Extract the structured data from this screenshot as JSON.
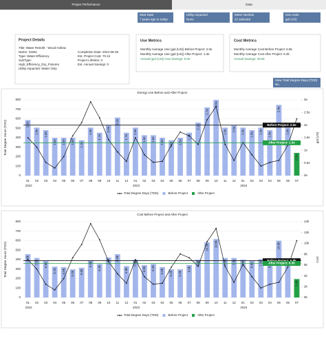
{
  "tabs": [
    "Project Performance",
    "Data"
  ],
  "filters": [
    {
      "label": "Start Date",
      "value": "7 years ago to today"
    },
    {
      "label": "Utility Impacted",
      "value": "None"
    },
    {
      "label": "Meter Number",
      "value": "22 selected"
    },
    {
      "label": "Use Units",
      "value": "gal (US)"
    }
  ],
  "project_details": {
    "title": "Project Details",
    "heading": "Title: Water Retrofit - Wood Hollow",
    "left": [
      "Name: 31561",
      "Type: Water Efficiency",
      "SubType:",
      "High_Efficiency_Dry_Fixtures",
      "Utility Impacted: Water Only"
    ],
    "right": [
      "Completion Date: 2024-06-28",
      "Est. Project Cost: 70.1k",
      "Project Lifetime: 0",
      "Est. Annual Savings: 0"
    ]
  },
  "use_metrics": {
    "title": "Use Metrics",
    "lines": [
      "Monthly Average Use (gal (US)) Before Project: 2.0e",
      "Monthly Average Use (gal (US)) After Project: 1.3e",
      "Annual (gal (US)) Use Savings: 8.0e"
    ]
  },
  "cost_metrics": {
    "title": "Cost Metrics",
    "lines": [
      "Monthly Average Cost Before Project: 6.8k",
      "Monthly Average Cost After Project: 6.3k",
      "Annual Savings: 29.6k"
    ]
  },
  "tdd_toggle": {
    "label": "View Total Degree Days (TDD)",
    "value": "No"
  },
  "chart_data": [
    {
      "type": "bar_line",
      "title": "Energy Use Before and After Project",
      "y_label": "Total Degree Hours (TDD)",
      "y2_label": "gal (US)",
      "categories": [
        "01",
        "02",
        "03",
        "04",
        "05",
        "06",
        "07",
        "08",
        "09",
        "10",
        "11",
        "12",
        "01",
        "02",
        "03",
        "04",
        "05",
        "06",
        "07",
        "08",
        "09",
        "10",
        "11",
        "12",
        "01",
        "02",
        "03",
        "04",
        "05",
        "06",
        "07"
      ],
      "x_groups": [
        "2022",
        "2023",
        "2024"
      ],
      "ylim": [
        0,
        800
      ],
      "yticks": [
        0,
        100,
        200,
        300,
        400,
        500,
        600,
        700,
        800
      ],
      "y2lim": [
        0,
        3
      ],
      "y2ticks": [
        {
          "value": 0,
          "label": "0e"
        },
        {
          "value": 0.5,
          "label": "0.5e"
        },
        {
          "value": 1,
          "label": "1e"
        },
        {
          "value": 1.5,
          "label": "1.5e"
        },
        {
          "value": 2,
          "label": "2e"
        },
        {
          "value": 2.5,
          "label": "2.5e"
        },
        {
          "value": 3,
          "label": "3e"
        }
      ],
      "series": [
        {
          "name": "Total Degree Days (TDD)",
          "type": "line",
          "color": "#111111",
          "values": [
            400,
            300,
            140,
            80,
            200,
            420,
            560,
            780,
            610,
            380,
            250,
            150,
            400,
            220,
            140,
            150,
            320,
            460,
            420,
            330,
            590,
            730,
            330,
            160,
            350,
            220,
            100,
            140,
            160,
            320,
            600
          ]
        },
        {
          "name": "Before Project",
          "type": "bar",
          "axis": "y2",
          "color": "#a3b6ec",
          "values": [
            2.2,
            1.9,
            1.8,
            1.5,
            1.5,
            1.5,
            1.4,
            1.9,
            1.7,
            2.0,
            2.3,
            1.7,
            1.9,
            1.6,
            1.6,
            1.5,
            1.4,
            1.5,
            1.7,
            2.1,
            2.7,
            3.0,
            1.9,
            2.0,
            1.9,
            1.8,
            1.9,
            1.8,
            2.8,
            1.9,
            null
          ],
          "value_labels": [
            "2.2e",
            "1.9e",
            "1.8e",
            "1.5e",
            "1.5e",
            "1.5e",
            "1.4e",
            "1.9e",
            "1.7e",
            "2.0e",
            "2.3e",
            "1.7e",
            "1.9e",
            "1.6e",
            "1.6e",
            "1.5e",
            "1.4e",
            "1.5e",
            "1.7e",
            "2.1e",
            "2.7e",
            "3.0e",
            "1.9e",
            "2.0e",
            "1.9e",
            "1.8e",
            "1.9e",
            "1.8e",
            "2.8e",
            "1.9e",
            null
          ]
        },
        {
          "name": "After Project",
          "type": "bar",
          "axis": "y2",
          "color": "#22a046",
          "values": [
            null,
            null,
            null,
            null,
            null,
            null,
            null,
            null,
            null,
            null,
            null,
            null,
            null,
            null,
            null,
            null,
            null,
            null,
            null,
            null,
            null,
            null,
            null,
            null,
            null,
            null,
            null,
            null,
            null,
            null,
            0.9
          ],
          "value_labels": [
            null,
            null,
            null,
            null,
            null,
            null,
            null,
            null,
            null,
            null,
            null,
            null,
            null,
            null,
            null,
            null,
            null,
            null,
            null,
            null,
            null,
            null,
            null,
            null,
            null,
            null,
            null,
            null,
            null,
            null,
            "0.9e"
          ]
        }
      ],
      "reference_lines": [
        {
          "label": "Before Project: 2.0e",
          "value": 2.0,
          "color": "#111111"
        },
        {
          "label": "After Project: 1.3e",
          "value": 1.3,
          "color": "#22a046"
        }
      ]
    },
    {
      "type": "bar_line",
      "title": "Cost Before Project and After Project",
      "y_label": "Total Degree Hours (TDD)",
      "y2_label": "Cost",
      "categories": [
        "01",
        "02",
        "03",
        "04",
        "05",
        "06",
        "07",
        "08",
        "09",
        "10",
        "11",
        "12",
        "01",
        "02",
        "03",
        "04",
        "05",
        "06",
        "07",
        "08",
        "09",
        "10",
        "11",
        "12",
        "01",
        "02",
        "03",
        "04",
        "05",
        "06",
        "07"
      ],
      "x_groups": [
        "2022",
        "2023",
        "2024"
      ],
      "ylim": [
        0,
        800
      ],
      "yticks": [
        0,
        100,
        200,
        300,
        400,
        500,
        600,
        700,
        800
      ],
      "y2lim": [
        0,
        14
      ],
      "y2ticks": [
        {
          "value": 0,
          "label": "0k"
        },
        {
          "value": 2,
          "label": "2k"
        },
        {
          "value": 4,
          "label": "4k"
        },
        {
          "value": 6,
          "label": "6k"
        },
        {
          "value": 8,
          "label": "8k"
        },
        {
          "value": 10,
          "label": "10k"
        },
        {
          "value": 12,
          "label": "12k"
        },
        {
          "value": 14,
          "label": "14k"
        }
      ],
      "series": [
        {
          "name": "Total Degree Days (TDD)",
          "type": "line",
          "color": "#111111",
          "values": [
            400,
            300,
            140,
            80,
            200,
            420,
            560,
            780,
            610,
            380,
            250,
            150,
            400,
            220,
            140,
            150,
            320,
            460,
            420,
            330,
            590,
            730,
            330,
            160,
            350,
            220,
            100,
            140,
            160,
            320,
            600
          ]
        },
        {
          "name": "Before Project",
          "type": "bar",
          "axis": "y2",
          "color": "#a3b6ec",
          "values": [
            8.0,
            7.3,
            6.8,
            5.7,
            5.6,
            5.2,
            5.5,
            6.9,
            6.2,
            7.4,
            8.0,
            5.8,
            7.0,
            6.0,
            6.2,
            5.6,
            5.2,
            5.2,
            6.0,
            7.0,
            10.2,
            10.8,
            7.3,
            7.3,
            7.0,
            6.8,
            7.1,
            6.8,
            10.5,
            7.2,
            null
          ],
          "value_labels": [
            "8.0k",
            "7.3k",
            "6.8k",
            "5.7k",
            "5.6k",
            "5.2k",
            "5.5k",
            "6.9k",
            "6.2k",
            "7.4k",
            "8.0k",
            "5.8k",
            "7.0k",
            "6.0k",
            "6.2k",
            "5.6k",
            "5.2k",
            "5.2k",
            "6.0k",
            "7.0k",
            "10.2k",
            "10.8k",
            "7.3k",
            "7.3k",
            "7.0k",
            "6.8k",
            "7.1k",
            "6.8k",
            "10.5k",
            "7.2k",
            null
          ]
        },
        {
          "name": "After Project",
          "type": "bar",
          "axis": "y2",
          "color": "#22a046",
          "values": [
            null,
            null,
            null,
            null,
            null,
            null,
            null,
            null,
            null,
            null,
            null,
            null,
            null,
            null,
            null,
            null,
            null,
            null,
            null,
            null,
            null,
            null,
            null,
            null,
            null,
            null,
            null,
            null,
            null,
            null,
            3.4
          ],
          "value_labels": [
            null,
            null,
            null,
            null,
            null,
            null,
            null,
            null,
            null,
            null,
            null,
            null,
            null,
            null,
            null,
            null,
            null,
            null,
            null,
            null,
            null,
            null,
            null,
            null,
            null,
            null,
            null,
            null,
            null,
            null,
            "3.4k"
          ]
        }
      ],
      "reference_lines": [
        {
          "label": "Before Project: 6.8k",
          "value": 6.8,
          "color": "#111111"
        },
        {
          "label": "After Project: 6.3k",
          "value": 6.3,
          "color": "#22a046"
        }
      ]
    }
  ]
}
